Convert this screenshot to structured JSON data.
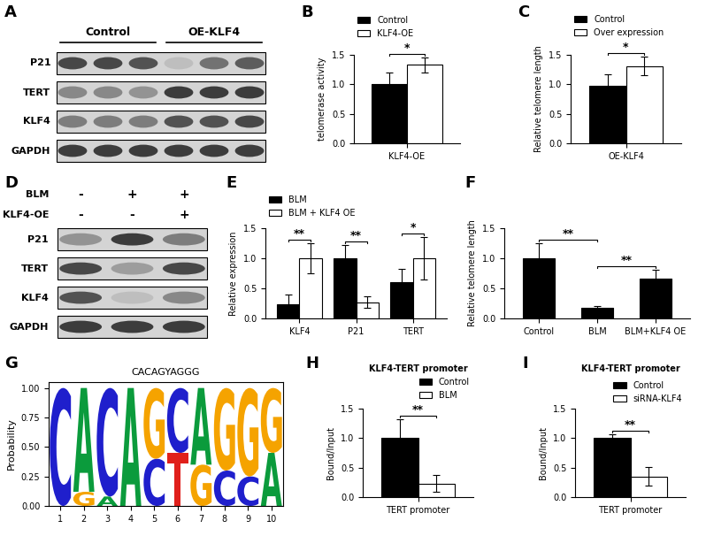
{
  "chart_data": [
    {
      "panel": "A",
      "type": "blot",
      "groups": [
        {
          "label": "Control",
          "lanes": 3
        },
        {
          "label": "OE-KLF4",
          "lanes": 3
        }
      ],
      "rows": [
        {
          "name": "P21",
          "intensities": [
            0.85,
            0.85,
            0.8,
            0.3,
            0.65,
            0.75
          ]
        },
        {
          "name": "TERT",
          "intensities": [
            0.55,
            0.55,
            0.5,
            0.9,
            0.9,
            0.9
          ]
        },
        {
          "name": "KLF4",
          "intensities": [
            0.6,
            0.6,
            0.6,
            0.8,
            0.8,
            0.85
          ]
        },
        {
          "name": "GAPDH",
          "intensities": [
            0.9,
            0.9,
            0.9,
            0.9,
            0.9,
            0.9
          ]
        }
      ]
    },
    {
      "panel": "B",
      "type": "bar",
      "categories": [
        "KLF4-OE"
      ],
      "series": [
        {
          "name": "Control",
          "color": "#000000",
          "values": [
            1.0
          ],
          "errors": [
            0.2
          ]
        },
        {
          "name": "KLF4-OE",
          "color": "#ffffff",
          "values": [
            1.33
          ],
          "errors": [
            0.13
          ]
        }
      ],
      "y_label": "telomerase activity",
      "ylim": [
        0,
        1.5
      ],
      "yticks": [
        {
          "value": 0,
          "label": "0.0"
        },
        {
          "value": 0.5,
          "label": "0.5"
        },
        {
          "value": 1.0,
          "label": "1.0"
        },
        {
          "value": 1.5,
          "label": "1.5"
        }
      ],
      "legend": "upper left",
      "significance": [
        {
          "label": "*",
          "bars": [
            0,
            1
          ]
        }
      ]
    },
    {
      "panel": "C",
      "type": "bar",
      "categories": [
        "OE-KLF4"
      ],
      "series": [
        {
          "name": "Control",
          "color": "#000000",
          "values": [
            0.97
          ],
          "errors": [
            0.2
          ]
        },
        {
          "name": "Over expression",
          "color": "#ffffff",
          "values": [
            1.31
          ],
          "errors": [
            0.16
          ]
        }
      ],
      "y_label": "Relative telomere length",
      "ylim": [
        0,
        1.5
      ],
      "yticks": [
        {
          "value": 0,
          "label": "0.0"
        },
        {
          "value": 0.5,
          "label": "0.5"
        },
        {
          "value": 1.0,
          "label": "1.0"
        },
        {
          "value": 1.5,
          "label": "1.5"
        }
      ],
      "legend": "upper left",
      "significance": [
        {
          "label": "*",
          "bars": [
            0,
            1
          ]
        }
      ]
    },
    {
      "panel": "D",
      "type": "blot",
      "header": [
        {
          "name": "BLM",
          "marks": [
            "-",
            "+",
            "+"
          ]
        },
        {
          "name": "KLF4-OE",
          "marks": [
            "-",
            "-",
            "+"
          ]
        }
      ],
      "rows": [
        {
          "name": "P21",
          "intensities": [
            0.5,
            0.9,
            0.6
          ]
        },
        {
          "name": "TERT",
          "intensities": [
            0.85,
            0.45,
            0.85
          ]
        },
        {
          "name": "KLF4",
          "intensities": [
            0.8,
            0.3,
            0.55
          ]
        },
        {
          "name": "GAPDH",
          "intensities": [
            0.9,
            0.9,
            0.9
          ]
        }
      ]
    },
    {
      "panel": "E",
      "type": "bar",
      "categories": [
        "KLF4",
        "P21",
        "TERT"
      ],
      "series": [
        {
          "name": "BLM",
          "color": "#000000",
          "values": [
            0.23,
            1.0,
            0.6
          ],
          "errors": [
            0.16,
            0.22,
            0.23
          ]
        },
        {
          "name": "BLM + KLF4 OE",
          "color": "#ffffff",
          "values": [
            1.0,
            0.27,
            1.0
          ],
          "errors": [
            0.25,
            0.1,
            0.35
          ]
        }
      ],
      "y_label": "Relative expression",
      "ylim": [
        0,
        1.5
      ],
      "yticks": [
        {
          "value": 0,
          "label": "0.0"
        },
        {
          "value": 0.5,
          "label": "0.5"
        },
        {
          "value": 1.0,
          "label": "1.0"
        },
        {
          "value": 1.5,
          "label": "1.5"
        }
      ],
      "legend": "upper left",
      "significance": [
        {
          "label": "**",
          "bars": [
            0,
            1
          ]
        },
        {
          "label": "**",
          "bars": [
            2,
            3
          ]
        },
        {
          "label": "*",
          "bars": [
            4,
            5
          ]
        }
      ]
    },
    {
      "panel": "F",
      "type": "bar",
      "categories": [
        "Control",
        "BLM",
        "BLM+KLF4 OE"
      ],
      "values": [
        1.0,
        0.18,
        0.66
      ],
      "errors": [
        0.25,
        0.03,
        0.15
      ],
      "color": "#000000",
      "y_label": "Relative telomere length",
      "ylim": [
        0,
        1.5
      ],
      "yticks": [
        {
          "value": 0,
          "label": "0.0"
        },
        {
          "value": 0.5,
          "label": "0.5"
        },
        {
          "value": 1.0,
          "label": "1.0"
        },
        {
          "value": 1.5,
          "label": "1.5"
        }
      ],
      "significance": [
        {
          "label": "**",
          "bars": [
            0,
            1
          ]
        },
        {
          "label": "**",
          "bars": [
            1,
            2
          ]
        }
      ]
    },
    {
      "panel": "G",
      "type": "logo",
      "title": "CACAGYAGGG",
      "y_label": "Probability",
      "x": [
        1,
        2,
        3,
        4,
        5,
        6,
        7,
        8,
        9,
        10
      ],
      "stacks": [
        [
          {
            "letter": "C",
            "value": 1.0,
            "color": "#1f1fcc"
          }
        ],
        [
          {
            "letter": "G",
            "value": 0.12,
            "color": "#f5a300"
          },
          {
            "letter": "A",
            "value": 0.88,
            "color": "#0b9b3c"
          }
        ],
        [
          {
            "letter": "A",
            "value": 0.08,
            "color": "#0b9b3c"
          },
          {
            "letter": "C",
            "value": 0.92,
            "color": "#1f1fcc"
          }
        ],
        [
          {
            "letter": "A",
            "value": 1.0,
            "color": "#0b9b3c"
          }
        ],
        [
          {
            "letter": "C",
            "value": 0.4,
            "color": "#1f1fcc"
          },
          {
            "letter": "G",
            "value": 0.6,
            "color": "#f5a300"
          }
        ],
        [
          {
            "letter": "T",
            "value": 0.45,
            "color": "#e0201b"
          },
          {
            "letter": "C",
            "value": 0.55,
            "color": "#1f1fcc"
          }
        ],
        [
          {
            "letter": "G",
            "value": 0.35,
            "color": "#f5a300"
          },
          {
            "letter": "A",
            "value": 0.65,
            "color": "#0b9b3c"
          }
        ],
        [
          {
            "letter": "C",
            "value": 0.3,
            "color": "#1f1fcc"
          },
          {
            "letter": "G",
            "value": 0.7,
            "color": "#f5a300"
          }
        ],
        [
          {
            "letter": "C",
            "value": 0.25,
            "color": "#1f1fcc"
          },
          {
            "letter": "G",
            "value": 0.75,
            "color": "#f5a300"
          }
        ],
        [
          {
            "letter": "A",
            "value": 0.45,
            "color": "#0b9b3c"
          },
          {
            "letter": "G",
            "value": 0.55,
            "color": "#f5a300"
          }
        ]
      ],
      "xlim": [
        0.5,
        10.5
      ],
      "xticks": [
        1,
        2,
        3,
        4,
        5,
        6,
        7,
        8,
        9,
        10
      ],
      "ylim": [
        0,
        1.05
      ],
      "yticks": [
        {
          "value": 0,
          "label": "0.00"
        },
        {
          "value": 0.25,
          "label": "0.25"
        },
        {
          "value": 0.5,
          "label": "0.50"
        },
        {
          "value": 0.75,
          "label": "0.75"
        },
        {
          "value": 1.0,
          "label": "1.00"
        }
      ]
    },
    {
      "panel": "H",
      "type": "bar",
      "title": "KLF4-TERT promoter",
      "categories": [
        "TERT promoter"
      ],
      "series": [
        {
          "name": "Control",
          "color": "#000000",
          "values": [
            1.0
          ],
          "errors": [
            0.32
          ]
        },
        {
          "name": "BLM",
          "color": "#ffffff",
          "values": [
            0.23
          ],
          "errors": [
            0.14
          ]
        }
      ],
      "y_label": "Bound/Input",
      "ylim": [
        0,
        1.5
      ],
      "yticks": [
        {
          "value": 0,
          "label": "0.0"
        },
        {
          "value": 0.5,
          "label": "0.5"
        },
        {
          "value": 1.0,
          "label": "1.0"
        },
        {
          "value": 1.5,
          "label": "1.5"
        }
      ],
      "legend": "upper right",
      "significance": [
        {
          "label": "**",
          "bars": [
            0,
            1
          ]
        }
      ]
    },
    {
      "panel": "I",
      "type": "bar",
      "title": "KLF4-TERT promoter",
      "categories": [
        "TERT promoter"
      ],
      "series": [
        {
          "name": "Control",
          "color": "#000000",
          "values": [
            1.0
          ],
          "errors": [
            0.07
          ]
        },
        {
          "name": "siRNA-KLF4",
          "color": "#ffffff",
          "values": [
            0.35
          ],
          "errors": [
            0.16
          ]
        }
      ],
      "y_label": "Bound/Input",
      "ylim": [
        0,
        1.5
      ],
      "yticks": [
        {
          "value": 0,
          "label": "0.0"
        },
        {
          "value": 0.5,
          "label": "0.5"
        },
        {
          "value": 1.0,
          "label": "1.0"
        },
        {
          "value": 1.5,
          "label": "1.5"
        }
      ],
      "legend": "upper right",
      "significance": [
        {
          "label": "**",
          "bars": [
            0,
            1
          ]
        }
      ]
    }
  ]
}
